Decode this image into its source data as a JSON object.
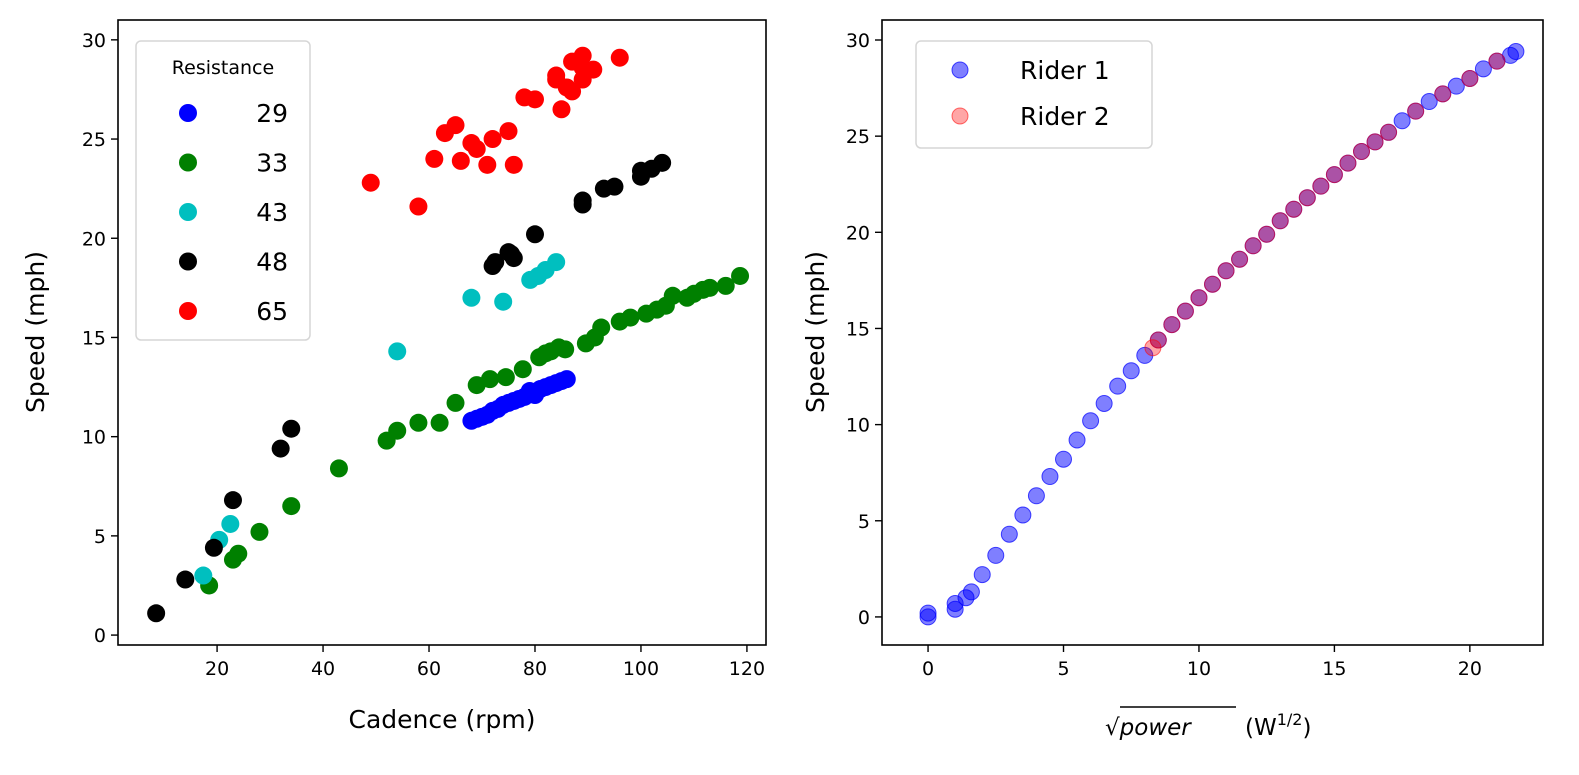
{
  "chart_data": [
    {
      "type": "scatter",
      "xlabel": "Cadence (rpm)",
      "ylabel": "Speed (mph)",
      "xlim": [
        1.3,
        123.6
      ],
      "ylim": [
        -0.5,
        31.0
      ],
      "xticks": [
        20,
        40,
        60,
        80,
        100,
        120
      ],
      "yticks": [
        0,
        5,
        10,
        15,
        20,
        25,
        30
      ],
      "grid": false,
      "legend": {
        "title": "Resistance",
        "placement": "top-left"
      },
      "series": [
        {
          "name": "29",
          "color": "#0000ff",
          "x": [
            68,
            69,
            70,
            71,
            72,
            73,
            74,
            75,
            76,
            77,
            78,
            79,
            80,
            81,
            82,
            83,
            84,
            85,
            86
          ],
          "y": [
            10.8,
            10.9,
            11.0,
            11.1,
            11.3,
            11.4,
            11.6,
            11.7,
            11.8,
            11.9,
            12.0,
            12.3,
            12.1,
            12.4,
            12.5,
            12.6,
            12.7,
            12.8,
            12.9
          ]
        },
        {
          "name": "33",
          "color": "#008000",
          "x": [
            18.5,
            23,
            24,
            28,
            34,
            43,
            52,
            54,
            58,
            62,
            65,
            69,
            71.5,
            74.5,
            77.7,
            80.8,
            82,
            83,
            84.5,
            85.7,
            89.6,
            91.3,
            92.5,
            96,
            98,
            101,
            103,
            104.7,
            106,
            108.7,
            110,
            111.7,
            113,
            116,
            118.7
          ],
          "y": [
            2.5,
            3.8,
            4.1,
            5.2,
            6.5,
            8.4,
            9.8,
            10.3,
            10.7,
            10.7,
            11.7,
            12.6,
            12.9,
            13.0,
            13.4,
            14.0,
            14.2,
            14.3,
            14.5,
            14.4,
            14.7,
            15.0,
            15.5,
            15.8,
            16.0,
            16.2,
            16.4,
            16.6,
            17.1,
            17.0,
            17.2,
            17.4,
            17.5,
            17.6,
            18.1
          ]
        },
        {
          "name": "43",
          "color": "#00bfbf",
          "x": [
            17.4,
            20.4,
            22.5,
            54,
            68,
            74,
            79.1,
            80.6,
            82,
            84
          ],
          "y": [
            3.0,
            4.8,
            5.6,
            14.3,
            17.0,
            16.8,
            17.9,
            18.1,
            18.4,
            18.8
          ]
        },
        {
          "name": "48",
          "color": "#000000",
          "x": [
            8.5,
            14,
            19.4,
            23,
            32,
            34,
            72,
            72.5,
            75,
            75.5,
            76,
            80,
            89,
            89,
            93,
            95,
            100,
            100,
            102,
            104
          ],
          "y": [
            1.1,
            2.8,
            4.4,
            6.8,
            9.4,
            10.4,
            18.6,
            18.8,
            19.3,
            19.2,
            19.0,
            20.2,
            21.9,
            21.7,
            22.5,
            22.6,
            23.4,
            23.1,
            23.5,
            23.8
          ]
        },
        {
          "name": "65",
          "color": "#ff0000",
          "x": [
            49,
            58,
            61,
            63,
            65,
            66,
            68,
            69,
            71,
            72,
            75,
            76,
            78,
            80,
            84,
            84,
            85,
            86,
            87,
            87,
            89,
            89,
            89,
            91,
            96
          ],
          "y": [
            22.8,
            21.6,
            24.0,
            25.3,
            25.7,
            23.9,
            24.8,
            24.5,
            23.7,
            25.0,
            25.4,
            23.7,
            27.1,
            27.0,
            28.2,
            28.0,
            26.5,
            27.6,
            27.4,
            28.9,
            29.2,
            28.0,
            28.6,
            28.5,
            29.1
          ]
        }
      ]
    },
    {
      "type": "scatter",
      "xlabel_func": "power",
      "xlabel_unit": "W",
      "xlabel_exp": "1/2",
      "ylabel": "Speed (mph)",
      "xlim": [
        -1.7,
        22.7
      ],
      "ylim": [
        -1.46,
        31.04
      ],
      "xticks": [
        0,
        5,
        10,
        15,
        20
      ],
      "yticks": [
        0,
        5,
        10,
        15,
        20,
        25,
        30
      ],
      "grid": false,
      "legend": {
        "placement": "top-left"
      },
      "series": [
        {
          "name": "Rider 1",
          "color": "#0000ff",
          "alpha": 0.5,
          "x": [
            0,
            0,
            1,
            1,
            1.4,
            1.6,
            2,
            2.5,
            3,
            3.5,
            4,
            4.5,
            5,
            5.5,
            6,
            6.5,
            7,
            7.5,
            8,
            8.5,
            9,
            9.5,
            10,
            10.5,
            11,
            11.5,
            12,
            12.5,
            13,
            13.5,
            14,
            14.5,
            15,
            15.5,
            16,
            16.5,
            17,
            17.5,
            18,
            18.5,
            19,
            19.5,
            20,
            20.5,
            21,
            21.5,
            21.7
          ],
          "y": [
            0,
            0.2,
            0.4,
            0.7,
            1.0,
            1.3,
            2.2,
            3.2,
            4.3,
            5.3,
            6.3,
            7.3,
            8.2,
            9.2,
            10.2,
            11.1,
            12.0,
            12.8,
            13.6,
            14.4,
            15.2,
            15.9,
            16.6,
            17.3,
            18.0,
            18.6,
            19.3,
            19.9,
            20.6,
            21.2,
            21.8,
            22.4,
            23.0,
            23.6,
            24.2,
            24.7,
            25.2,
            25.8,
            26.3,
            26.8,
            27.2,
            27.6,
            28.0,
            28.5,
            28.9,
            29.2,
            29.4
          ]
        },
        {
          "name": "Rider 2",
          "color": "#ff0000",
          "alpha": 0.35,
          "x": [
            8.3,
            8.5,
            9,
            9.5,
            10,
            10.5,
            11,
            11.5,
            12,
            12.5,
            13,
            13.5,
            14,
            14.5,
            15,
            15.5,
            16,
            16.5,
            17,
            18,
            19,
            20,
            21
          ],
          "y": [
            14.0,
            14.4,
            15.2,
            15.9,
            16.6,
            17.3,
            18.0,
            18.6,
            19.3,
            19.9,
            20.6,
            21.2,
            21.8,
            22.4,
            23.0,
            23.6,
            24.2,
            24.7,
            25.2,
            26.3,
            27.2,
            28.0,
            28.9
          ]
        }
      ]
    }
  ]
}
